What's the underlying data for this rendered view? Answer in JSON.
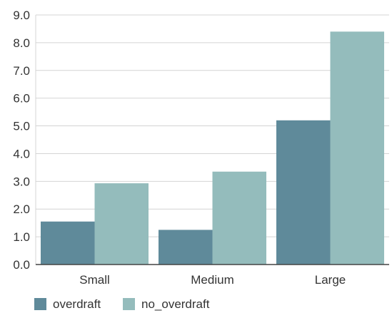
{
  "chart_data": {
    "type": "bar",
    "categories": [
      "Small",
      "Medium",
      "Large"
    ],
    "series": [
      {
        "name": "overdraft",
        "values": [
          1.55,
          1.25,
          5.2
        ],
        "color": "#5f8a9a"
      },
      {
        "name": "no_overdraft",
        "values": [
          2.93,
          3.35,
          8.4
        ],
        "color": "#94bcbc"
      }
    ],
    "ylim": [
      0,
      9
    ],
    "yticks": [
      "0.0",
      "1.0",
      "2.0",
      "3.0",
      "4.0",
      "5.0",
      "6.0",
      "7.0",
      "8.0",
      "9.0"
    ],
    "grid": true,
    "legend_position": "bottom-left"
  }
}
